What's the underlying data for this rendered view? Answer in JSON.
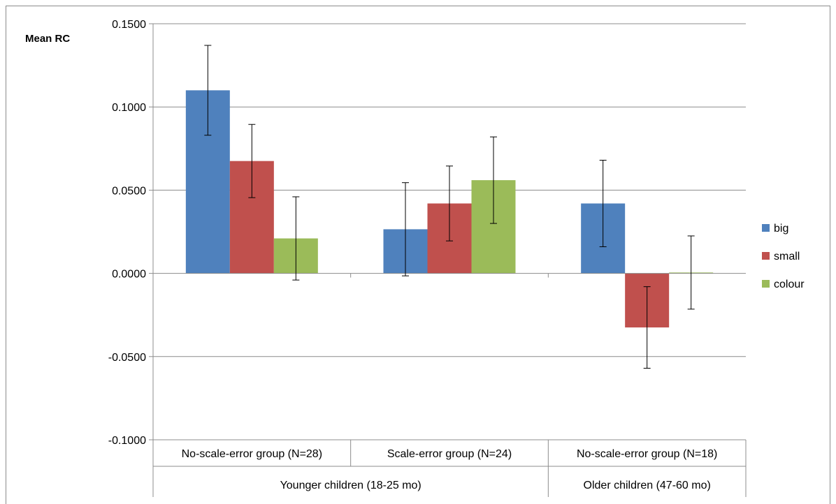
{
  "chart_data": {
    "type": "bar",
    "title": "",
    "ylabel": "Mean RC",
    "xlabel": "",
    "ylim": [
      -0.1,
      0.15
    ],
    "yticks": [
      0.15,
      0.1,
      0.05,
      0.0,
      -0.05,
      -0.1
    ],
    "ytick_labels": [
      "0.1500",
      "0.1000",
      "0.0500",
      "0.0000",
      "-0.0500",
      "-0.1000"
    ],
    "grid": "horizontal",
    "legend_position": "right",
    "categories": [
      "No-scale-error group (N=28)",
      "Scale-error group (N=24)",
      "No-scale-error group (N=18)"
    ],
    "category_groups": [
      {
        "label": "Younger children (18-25 mo)",
        "span": [
          0,
          1
        ]
      },
      {
        "label": "Older children (47-60 mo)",
        "span": [
          2,
          2
        ]
      }
    ],
    "series": [
      {
        "name": "big",
        "color": "#4f81bd",
        "values": [
          0.11,
          0.0265,
          0.042
        ],
        "errors": [
          0.027,
          0.028,
          0.026
        ]
      },
      {
        "name": "small",
        "color": "#c0504d",
        "values": [
          0.0675,
          0.042,
          -0.0325
        ],
        "errors": [
          0.022,
          0.0225,
          0.0245
        ]
      },
      {
        "name": "colour",
        "color": "#9bbb59",
        "values": [
          0.021,
          0.056,
          0.0005
        ],
        "errors": [
          0.025,
          0.026,
          0.022
        ]
      }
    ]
  }
}
